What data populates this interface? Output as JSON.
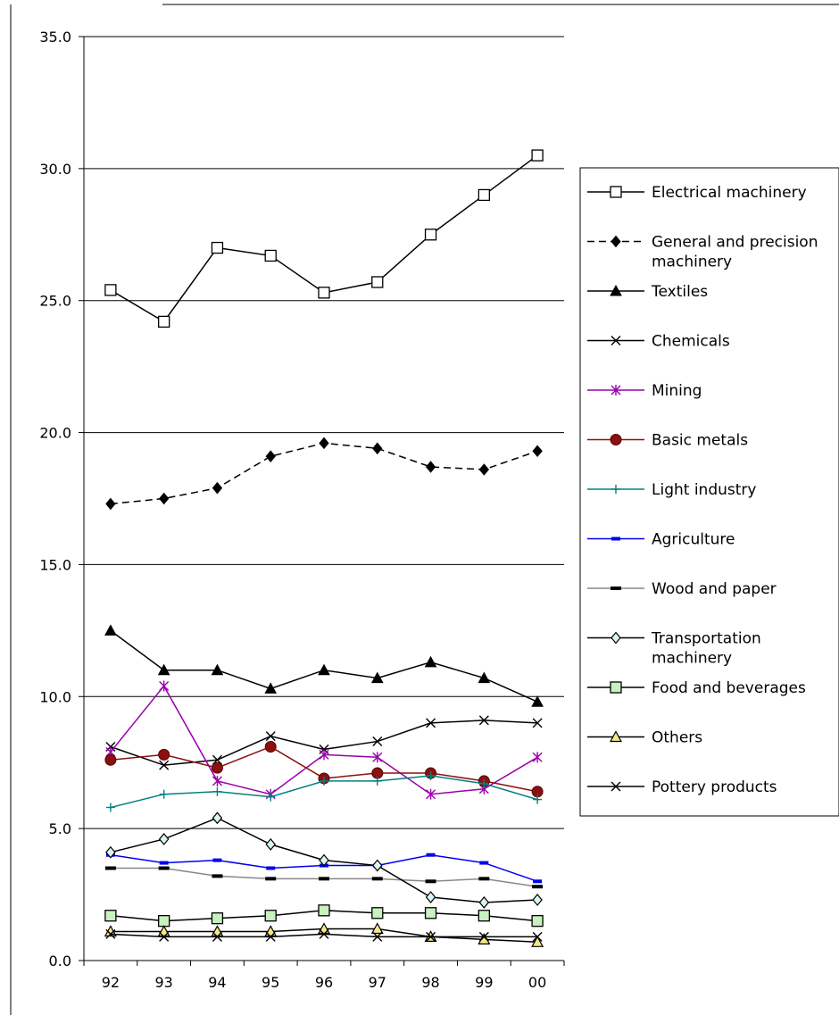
{
  "chart_data": {
    "type": "line",
    "categories": [
      "92",
      "93",
      "94",
      "95",
      "96",
      "97",
      "98",
      "99",
      "00"
    ],
    "ylim": [
      0,
      35
    ],
    "yticks": [
      "0.0",
      "5.0",
      "10.0",
      "15.0",
      "20.0",
      "25.0",
      "30.0",
      "35.0"
    ],
    "grid": "horizontal",
    "legend_placement": "right",
    "series": [
      {
        "name": "Electrical machinery",
        "marker": "square-open",
        "color": "#000000",
        "dash": "",
        "values": [
          25.4,
          24.2,
          27.0,
          26.7,
          25.3,
          25.7,
          27.5,
          29.0,
          30.5
        ]
      },
      {
        "name": "General and precision machinery",
        "label_lines": [
          "General and precision",
          "machinery"
        ],
        "marker": "diamond-filled",
        "color": "#000000",
        "dash": "8,5",
        "values": [
          17.3,
          17.5,
          17.9,
          19.1,
          19.6,
          19.4,
          18.7,
          18.6,
          19.3
        ]
      },
      {
        "name": "Textiles",
        "marker": "triangle-filled",
        "color": "#000000",
        "dash": "",
        "values": [
          12.5,
          11.0,
          11.0,
          10.3,
          11.0,
          10.7,
          11.3,
          10.7,
          9.8
        ]
      },
      {
        "name": "Chemicals",
        "marker": "x",
        "color": "#000000",
        "dash": "",
        "values": [
          8.1,
          7.4,
          7.6,
          8.5,
          8.0,
          8.3,
          9.0,
          9.1,
          9.0
        ]
      },
      {
        "name": "Mining",
        "marker": "star",
        "color": "#9900aa",
        "dash": "",
        "values": [
          7.9,
          10.4,
          6.8,
          6.3,
          7.8,
          7.7,
          6.3,
          6.5,
          7.7
        ]
      },
      {
        "name": "Basic metals",
        "marker": "circle-filled",
        "color": "#8b1010",
        "dash": "",
        "values": [
          7.6,
          7.8,
          7.3,
          8.1,
          6.9,
          7.1,
          7.1,
          6.8,
          6.4
        ]
      },
      {
        "name": "Light industry",
        "marker": "plus",
        "color": "#008080",
        "dash": "",
        "values": [
          5.8,
          6.3,
          6.4,
          6.2,
          6.8,
          6.8,
          7.0,
          6.7,
          6.1
        ]
      },
      {
        "name": "Agriculture",
        "marker": "dash",
        "color": "#0000ee",
        "dash": "",
        "values": [
          4.0,
          3.7,
          3.8,
          3.5,
          3.6,
          3.6,
          4.0,
          3.7,
          3.0
        ]
      },
      {
        "name": "Wood and paper",
        "marker": "dash-black",
        "color": "#888888",
        "dash": "",
        "values": [
          3.5,
          3.5,
          3.2,
          3.1,
          3.1,
          3.1,
          3.0,
          3.1,
          2.8
        ]
      },
      {
        "name": "Transportation machinery",
        "label_lines": [
          "Transportation",
          "machinery"
        ],
        "marker": "diamond-open",
        "color": "#000000",
        "dash": "",
        "values": [
          4.1,
          4.6,
          5.4,
          4.4,
          3.8,
          3.6,
          2.4,
          2.2,
          2.3
        ]
      },
      {
        "name": "Food and beverages",
        "marker": "square-green",
        "color": "#000000",
        "dash": "",
        "values": [
          1.7,
          1.5,
          1.6,
          1.7,
          1.9,
          1.8,
          1.8,
          1.7,
          1.5
        ]
      },
      {
        "name": "Others",
        "marker": "triangle-yellow",
        "color": "#000000",
        "dash": "",
        "values": [
          1.1,
          1.1,
          1.1,
          1.1,
          1.2,
          1.2,
          0.9,
          0.8,
          0.7
        ]
      },
      {
        "name": "Pottery products",
        "marker": "x",
        "color": "#000000",
        "dash": "",
        "values": [
          1.0,
          0.9,
          0.9,
          0.9,
          1.0,
          0.9,
          0.9,
          0.9,
          0.9
        ]
      }
    ]
  }
}
